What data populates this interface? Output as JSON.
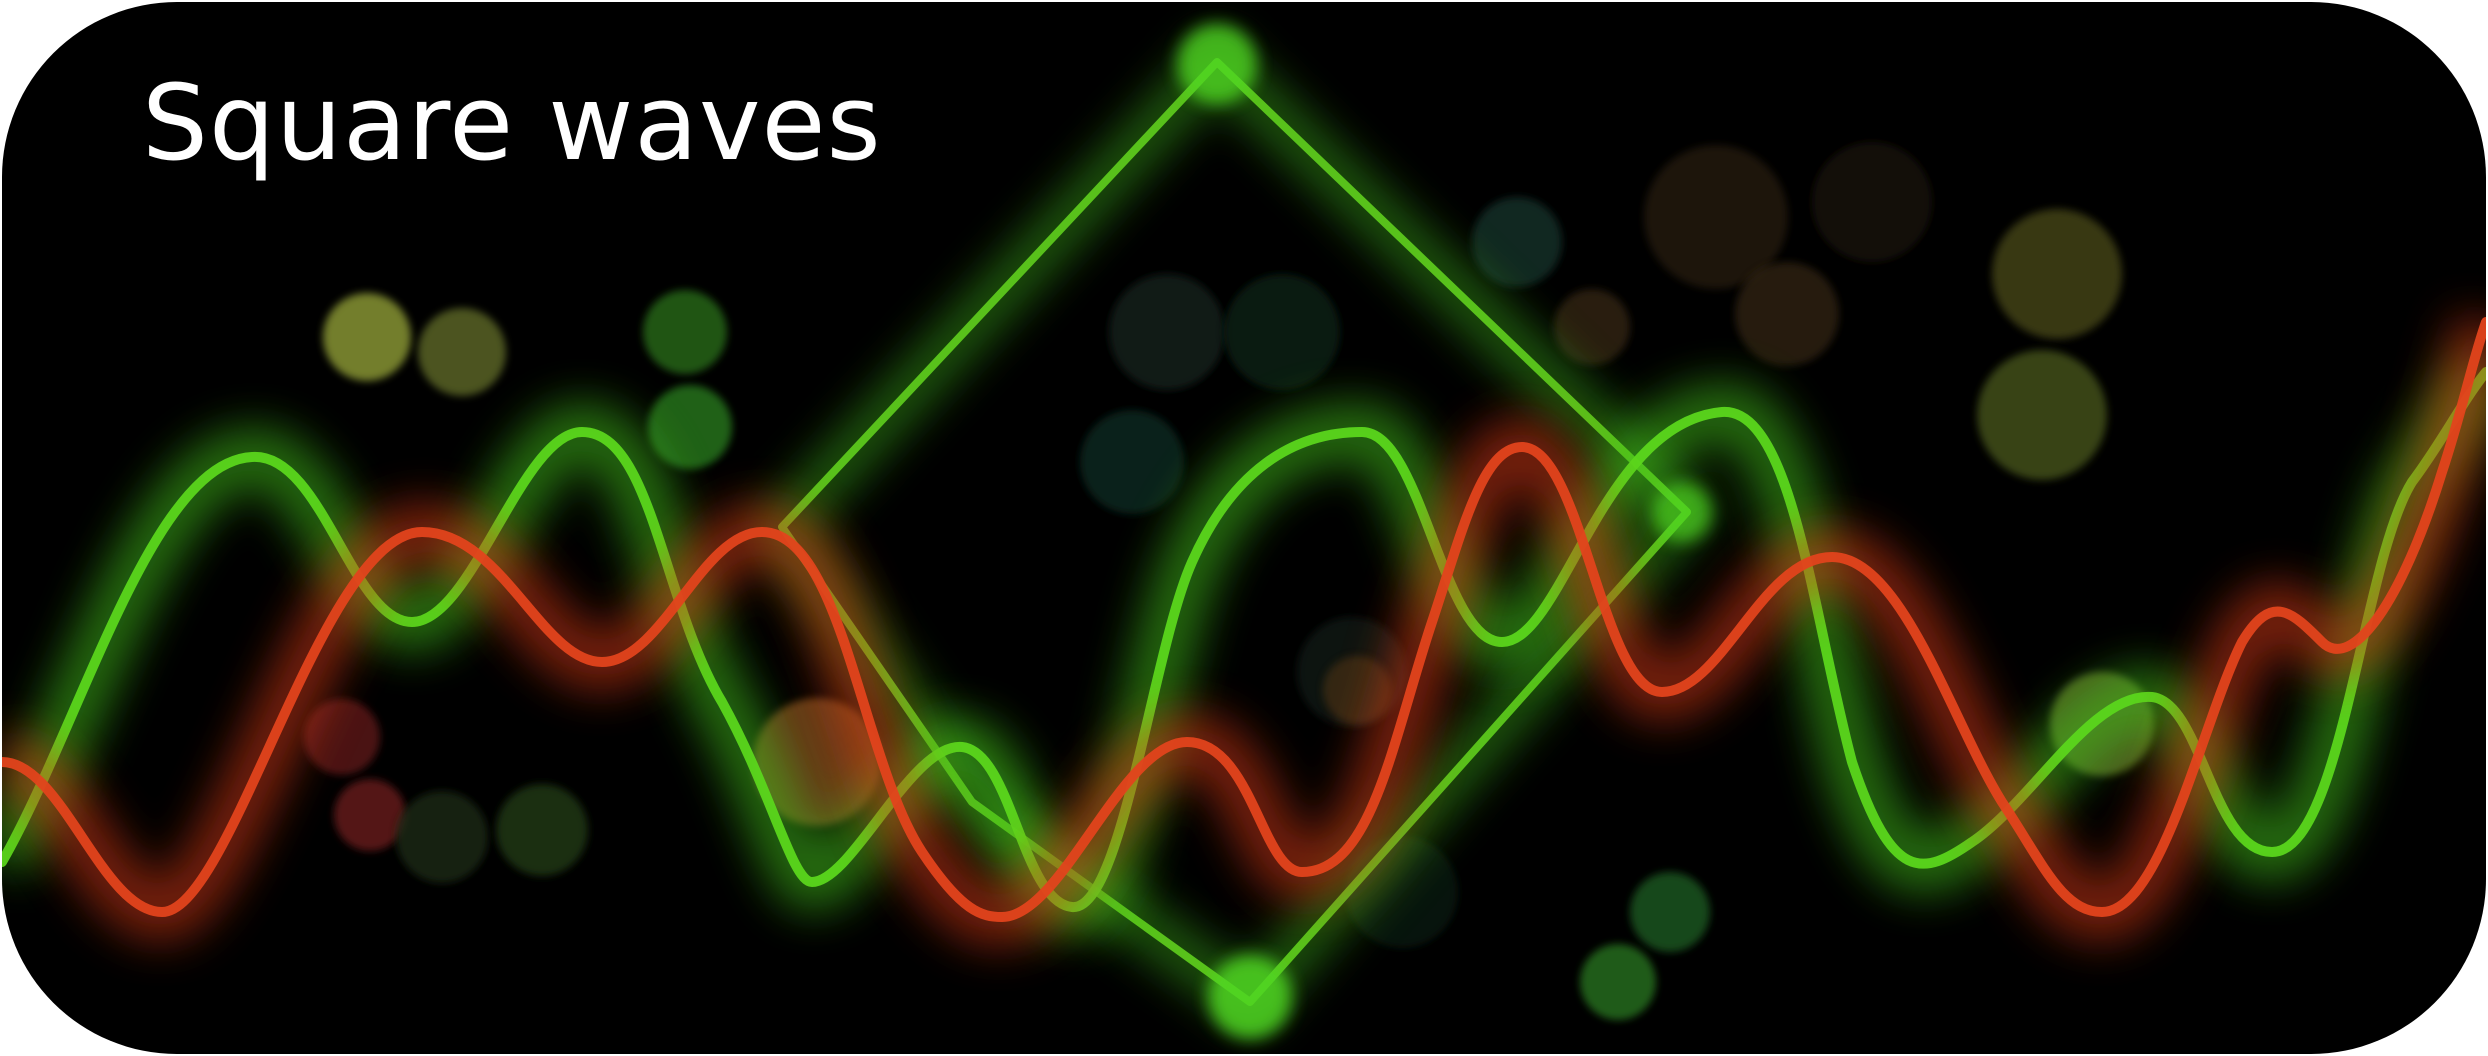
{
  "title": "Square waves",
  "colors": {
    "background": "#000000",
    "green_wave": "#58d319",
    "red_wave": "#e2401a",
    "title_text": "#ffffff"
  }
}
